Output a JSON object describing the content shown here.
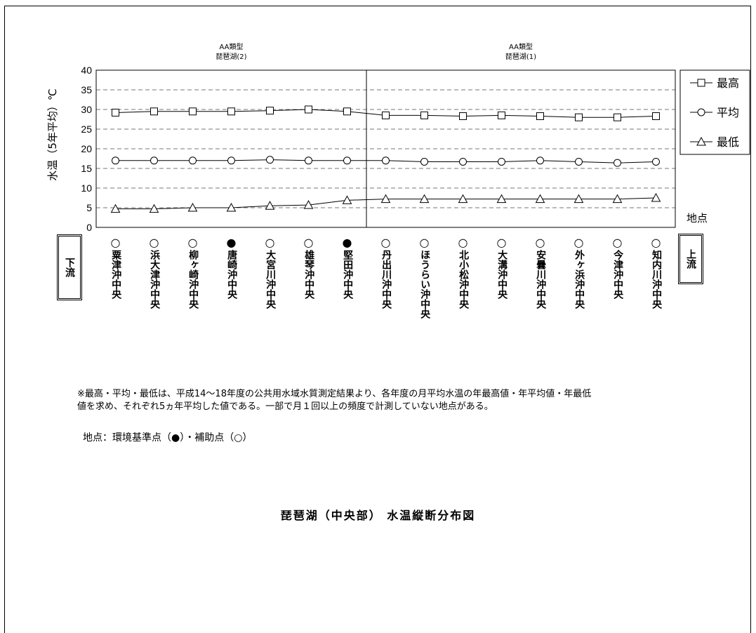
{
  "chart_data": {
    "type": "line",
    "ylabel": "水温（5年平均）℃",
    "ylim": [
      0,
      40
    ],
    "yticks": [
      0,
      5,
      10,
      15,
      20,
      25,
      30,
      35,
      40
    ],
    "grid": "dashed horizontal",
    "legend_position": "right",
    "section_labels": [
      {
        "type": "AA類型",
        "name": "琵琶湖(2)"
      },
      {
        "type": "AA類型",
        "name": "琵琶湖(1)"
      }
    ],
    "categories": [
      "粟津沖中央",
      "浜大津沖中央",
      "柳ヶ崎沖中央",
      "唐崎沖中央",
      "大宮川沖中央",
      "雄琴沖中央",
      "堅田沖中央",
      "丹出川沖中央",
      "ほうらい沖中央",
      "北小松沖中央",
      "大溝沖中央",
      "安曇川沖中央",
      "外ヶ浜沖中央",
      "今津沖中央",
      "知内川沖中央"
    ],
    "point_markers": [
      "○",
      "○",
      "○",
      "●",
      "○",
      "○",
      "●",
      "○",
      "○",
      "○",
      "○",
      "○",
      "○",
      "○",
      "○"
    ],
    "series": [
      {
        "name": "最高",
        "marker": "square",
        "values": [
          29.2,
          29.5,
          29.5,
          29.5,
          29.7,
          30.0,
          29.5,
          28.5,
          28.5,
          28.3,
          28.5,
          28.3,
          28.0,
          28.0,
          28.3
        ]
      },
      {
        "name": "平均",
        "marker": "circle",
        "values": [
          17.0,
          17.0,
          17.0,
          17.0,
          17.2,
          17.0,
          17.0,
          17.0,
          16.7,
          16.7,
          16.7,
          17.0,
          16.7,
          16.4,
          16.7
        ]
      },
      {
        "name": "最低",
        "marker": "triangle",
        "values": [
          4.7,
          4.7,
          5.0,
          5.0,
          5.5,
          5.7,
          6.9,
          7.2,
          7.2,
          7.2,
          7.2,
          7.2,
          7.2,
          7.2,
          7.5
        ]
      }
    ],
    "x_axis_name": "地点",
    "downstream_label": "下流",
    "upstream_label": "上流"
  },
  "footnote": [
    "※最高・平均・最低は、平成14～18年度の公共用水域水質測定結果より、各年度の月平均水温の年最高値・年平均値・年最低",
    "値を求め、それぞれ5ヵ年平均した値である。一部で月１回以上の頻度で計測していない地点がある。"
  ],
  "marker_legend": "地点：環境基準点（●）・補助点（○）",
  "caption": "琵琶湖（中央部） 水温縦断分布図"
}
